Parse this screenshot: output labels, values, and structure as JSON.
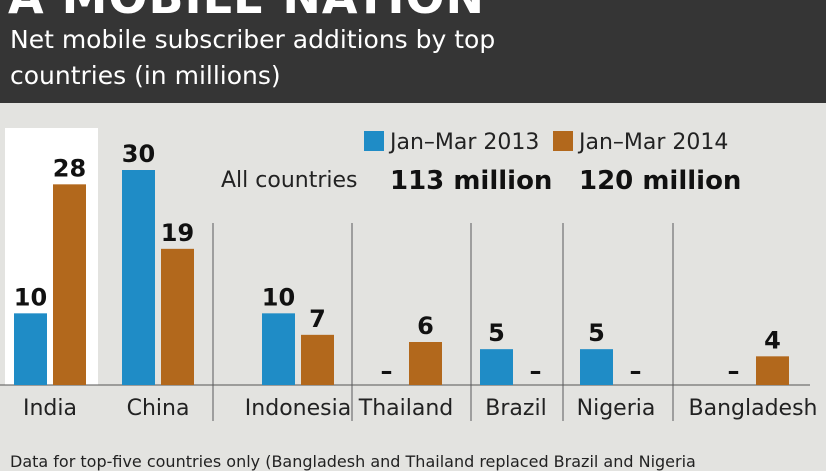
{
  "header": {
    "title": "A MOBILE NATION",
    "subtitle": "Net mobile subscriber additions by top countries (in millions)"
  },
  "colors": {
    "header_bg": "#353535",
    "page_bg": "#e3e3e0",
    "highlight_bg": "#ffffff",
    "series_2013": "#1f8cc6",
    "series_2014": "#b2681c",
    "divider": "#888888"
  },
  "chart_data": {
    "type": "bar",
    "title": "Net mobile subscriber additions by top countries (in millions)",
    "categories": [
      "India",
      "China",
      "Indonesia",
      "Thailand",
      "Brazil",
      "Nigeria",
      "Bangladesh"
    ],
    "series": [
      {
        "name": "Jan–Mar 2013",
        "values": [
          10,
          30,
          10,
          null,
          5,
          5,
          null
        ],
        "labels": [
          "10",
          "30",
          "10",
          "–",
          "5",
          "5",
          "–"
        ],
        "total_label": "113 million"
      },
      {
        "name": "Jan–Mar 2014",
        "values": [
          28,
          19,
          7,
          6,
          null,
          null,
          4
        ],
        "labels": [
          "28",
          "19",
          "7",
          "6",
          "–",
          "–",
          "4"
        ],
        "total_label": "120 million"
      }
    ],
    "totals_caption": "All countries",
    "highlighted_category": "India",
    "ylim": [
      0,
      30
    ],
    "grid": false,
    "legend_position": "top-right"
  },
  "footnote": "Data for top-five countries only (Bangladesh and Thailand replaced Brazil and Nigeria"
}
